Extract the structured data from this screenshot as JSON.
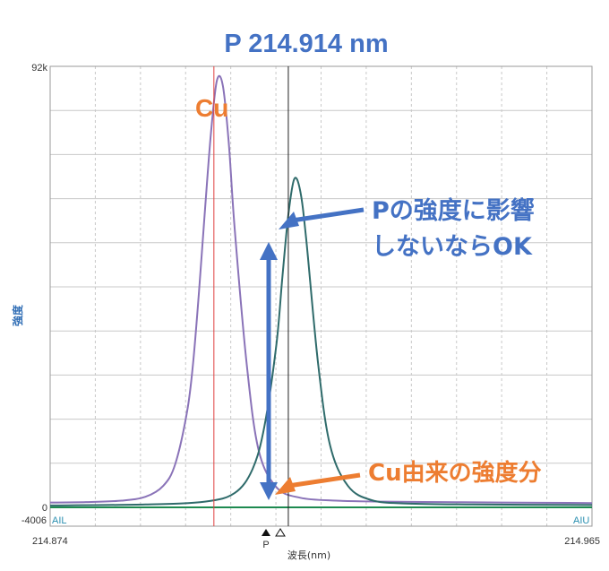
{
  "chart_data": {
    "type": "line",
    "title": "P 214.914 nm",
    "xlabel": "波長(nm)",
    "ylabel": "強度",
    "xlim": [
      214.874,
      214.965
    ],
    "ylim": [
      -4006,
      92000
    ],
    "x_tick_labels": {
      "left": "214.874",
      "right": "214.965"
    },
    "y_tick_labels": {
      "top": "92k",
      "zero": "0",
      "bottom": "-4006"
    },
    "grid": true,
    "corner_labels": {
      "left": "AIL",
      "right": "AIU"
    },
    "series": [
      {
        "color": "#8a73b8",
        "x": [
          214.874,
          214.88,
          214.886,
          214.89,
          214.893,
          214.895,
          214.897,
          214.898,
          214.899,
          214.9,
          214.901,
          214.902,
          214.903,
          214.904,
          214.905,
          214.907,
          214.909,
          214.912,
          214.916,
          214.922,
          214.93,
          214.94,
          214.95,
          214.965
        ],
        "y": [
          1000,
          1100,
          1400,
          2200,
          4500,
          9000,
          20000,
          30000,
          45000,
          62000,
          78000,
          89000,
          88000,
          76000,
          58000,
          30000,
          12000,
          4200,
          2000,
          1400,
          1200,
          1100,
          1000,
          900
        ]
      },
      {
        "color": "#2f6b6b",
        "x": [
          214.874,
          214.89,
          214.9,
          214.905,
          214.908,
          214.91,
          214.912,
          214.913,
          214.914,
          214.915,
          214.916,
          214.917,
          214.919,
          214.921,
          214.924,
          214.928,
          214.934,
          214.945,
          214.965
        ],
        "y": [
          400,
          600,
          1200,
          3000,
          8000,
          17000,
          34000,
          48000,
          61000,
          68500,
          66000,
          56000,
          30000,
          13000,
          4500,
          1500,
          800,
          600,
          500
        ]
      },
      {
        "color": "#1e8a50",
        "x": [
          214.874,
          214.9,
          214.914,
          214.93,
          214.965
        ],
        "y": [
          0,
          0,
          0,
          0,
          0
        ]
      }
    ],
    "vertical_lines": [
      {
        "x": 214.9015,
        "color": "#e04040"
      },
      {
        "x": 214.914,
        "color": "#222222"
      }
    ],
    "marker_label": "P",
    "annotations": {
      "cu": "Cu",
      "p_line1": "Pの強度に影響",
      "p_line2": "しないならOK",
      "cu_contrib": "Cu由来の強度分"
    },
    "annotation_colors": {
      "orange": "#ed7d31",
      "blue": "#4472c4"
    }
  }
}
